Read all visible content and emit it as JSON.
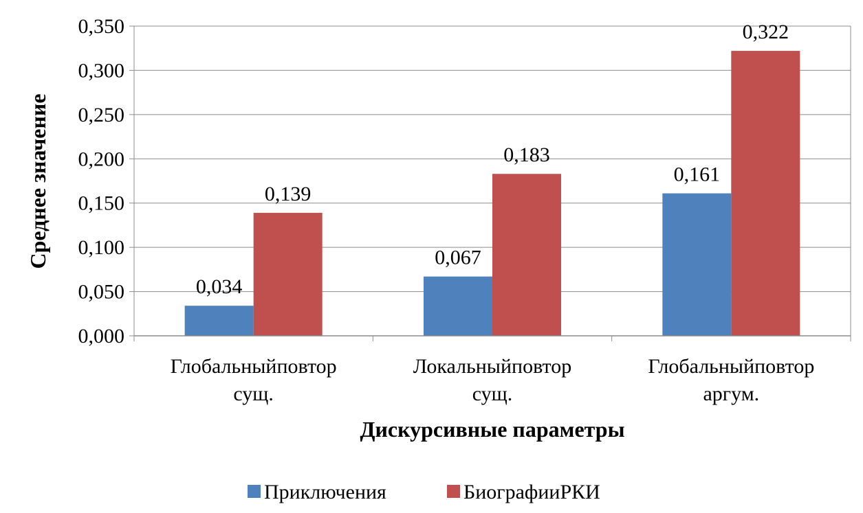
{
  "chart_data": {
    "type": "bar",
    "categories": [
      [
        "Глобальныйповтор",
        "сущ."
      ],
      [
        "Локальныйповтор",
        "сущ."
      ],
      [
        "Глобальныйповтор",
        "аргум."
      ]
    ],
    "series": [
      {
        "name": "Приключения",
        "values": [
          0.034,
          0.067,
          0.161
        ],
        "labels": [
          "0,034",
          "0,067",
          "0,161"
        ],
        "color": "#4f81bd"
      },
      {
        "name": "БиографииРКИ",
        "values": [
          0.139,
          0.183,
          0.322
        ],
        "labels": [
          "0,139",
          "0,183",
          "0,322"
        ],
        "color": "#c0504d"
      }
    ],
    "xlabel": "Дискурсивные параметры",
    "ylabel": "Среднее значение",
    "ylim": [
      0,
      0.35
    ],
    "yticks": [
      "0,000",
      "0,050",
      "0,100",
      "0,150",
      "0,200",
      "0,250",
      "0,300",
      "0,350"
    ],
    "grid": true,
    "legend_position": "bottom"
  }
}
